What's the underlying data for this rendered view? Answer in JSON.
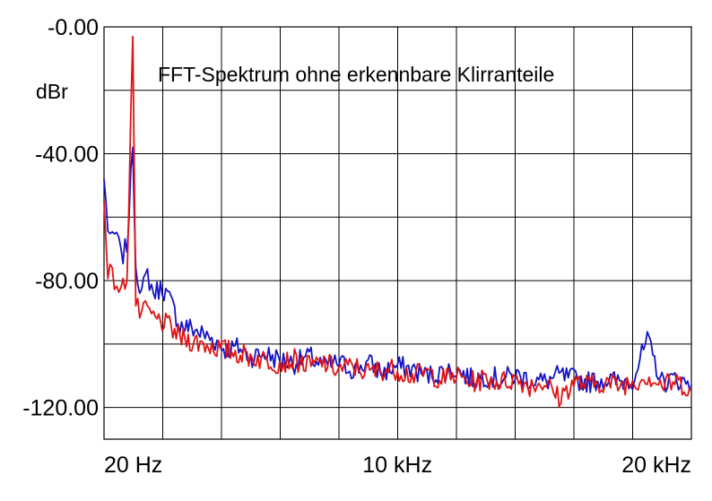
{
  "chart_data": {
    "type": "line",
    "title": "FFT-Spektrum ohne erkennbare Klirranteile",
    "ylabel": "dBr",
    "xlabel": "",
    "ylim": [
      -130,
      0
    ],
    "y_ticks": [
      {
        "value": 0,
        "label": "-0.00"
      },
      {
        "value": -40,
        "label": "-40.00"
      },
      {
        "value": -80,
        "label": "-80.00"
      },
      {
        "value": -120,
        "label": "-120.00"
      }
    ],
    "x_axis": {
      "scale": "linear",
      "unit": "Hz",
      "min": 20,
      "max": 20000
    },
    "x_ticks": [
      {
        "value": 20,
        "label": "20 Hz"
      },
      {
        "value": 10000,
        "label": "10 kHz"
      },
      {
        "value": 20000,
        "label": "20 kHz"
      }
    ],
    "grid": true,
    "series": [
      {
        "color": "#1414c8",
        "x": [
          20,
          150,
          300,
          450,
          600,
          800,
          1000,
          1100,
          1300,
          1500,
          1700,
          2000,
          2300,
          2600,
          3000,
          3400,
          3800,
          4200,
          4600,
          5000,
          5500,
          6000,
          6500,
          7000,
          7500,
          8000,
          8500,
          9000,
          9500,
          10000,
          10500,
          11000,
          11500,
          12000,
          12500,
          13000,
          13500,
          14000,
          14500,
          15000,
          15500,
          16000,
          16500,
          17000,
          17500,
          18000,
          18500,
          19000,
          19500,
          20000
        ],
        "y": [
          -48,
          -63,
          -68,
          -65,
          -73,
          -69,
          -38,
          -75,
          -84,
          -78,
          -84,
          -82,
          -87,
          -94,
          -95,
          -97,
          -99,
          -102,
          -101,
          -104,
          -103,
          -105,
          -106,
          -104,
          -107,
          -106,
          -108,
          -106,
          -109,
          -107,
          -108,
          -110,
          -109,
          -108,
          -111,
          -110,
          -111,
          -110,
          -111,
          -112,
          -110,
          -111,
          -112,
          -111,
          -112,
          -111,
          -99,
          -112,
          -111,
          -113
        ]
      },
      {
        "color": "#e01414",
        "x": [
          20,
          150,
          300,
          450,
          600,
          800,
          1000,
          1100,
          1300,
          1500,
          1700,
          2000,
          2300,
          2600,
          3000,
          3400,
          3800,
          4200,
          4600,
          5000,
          5500,
          6000,
          6500,
          7000,
          7500,
          8000,
          8500,
          9000,
          9500,
          10000,
          10500,
          11000,
          11500,
          12000,
          12500,
          13000,
          13500,
          14000,
          14500,
          15000,
          15500,
          16000,
          16500,
          17000,
          17500,
          18000,
          18500,
          19000,
          19500,
          20000
        ],
        "y": [
          -55,
          -76,
          -79,
          -81,
          -84,
          -78,
          -3,
          -88,
          -91,
          -89,
          -92,
          -93,
          -95,
          -98,
          -99,
          -100,
          -101,
          -102,
          -103,
          -104,
          -105,
          -106,
          -105,
          -107,
          -106,
          -108,
          -107,
          -109,
          -108,
          -108,
          -110,
          -109,
          -111,
          -110,
          -112,
          -111,
          -112,
          -111,
          -113,
          -112,
          -117,
          -112,
          -113,
          -112,
          -113,
          -112,
          -110,
          -113,
          -112,
          -114
        ]
      }
    ]
  }
}
